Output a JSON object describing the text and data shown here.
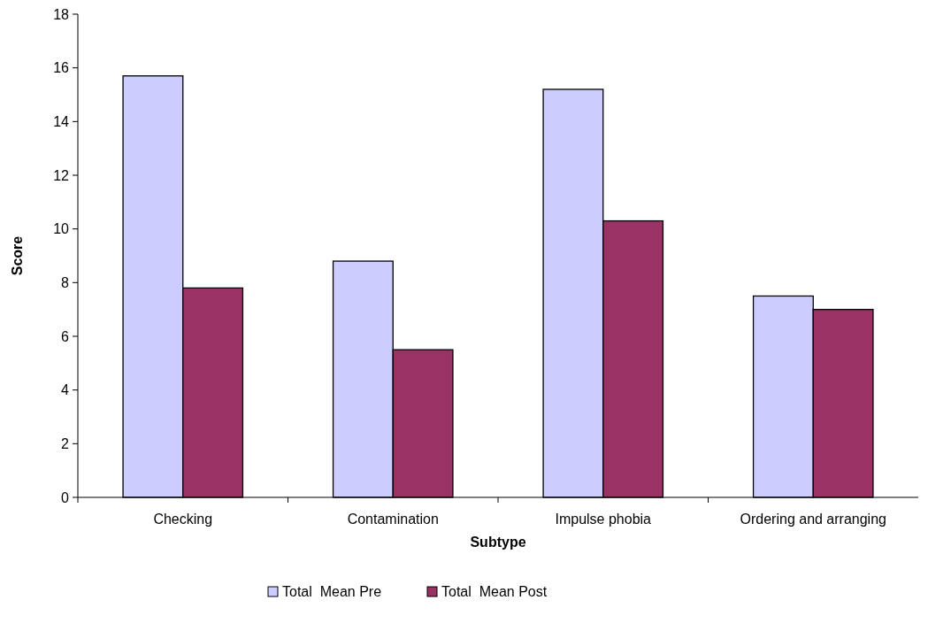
{
  "chart_data": {
    "type": "bar",
    "xlabel": "Subtype",
    "ylabel": "Score",
    "categories": [
      "Checking",
      "Contamination",
      "Impulse phobia",
      "Ordering and arranging"
    ],
    "series": [
      {
        "name": "Total  Mean Pre",
        "color": "#ccccff",
        "values": [
          15.7,
          8.8,
          15.2,
          7.5
        ]
      },
      {
        "name": "Total  Mean Post",
        "color": "#993366",
        "values": [
          7.8,
          5.5,
          10.3,
          7.0
        ]
      }
    ],
    "ylim": [
      0,
      18
    ],
    "yticks": [
      0,
      2,
      4,
      6,
      8,
      10,
      12,
      14,
      16,
      18
    ],
    "legend": "bottom"
  }
}
